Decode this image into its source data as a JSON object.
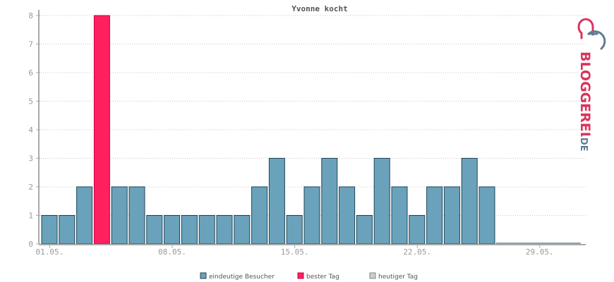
{
  "chart_data": {
    "type": "bar",
    "title": "Yvonne kocht",
    "ylim": [
      0,
      8
    ],
    "yticks": [
      0,
      1,
      2,
      3,
      4,
      5,
      6,
      7,
      8
    ],
    "slots": 31,
    "values": [
      1,
      1,
      2,
      8,
      2,
      2,
      1,
      1,
      1,
      1,
      1,
      1,
      2,
      3,
      1,
      2,
      3,
      2,
      1,
      3,
      2,
      1,
      2,
      2,
      3,
      2
    ],
    "best_day_index": 3,
    "xticks": [
      {
        "index": 0,
        "label": "01.05."
      },
      {
        "index": 7,
        "label": "08.05."
      },
      {
        "index": 14,
        "label": "15.05."
      },
      {
        "index": 21,
        "label": "22.05."
      },
      {
        "index": 28,
        "label": "29.05."
      }
    ],
    "grid": true,
    "legend_position": "bottom-center",
    "colors": {
      "bar": "#6aa2bb",
      "bar_stroke": "#1f4556",
      "best": "#ff2060",
      "best_stroke": "#c80040",
      "today": "#cccccc",
      "today_stroke": "#888888",
      "axis": "#aaaaaa",
      "grid": "#c8c8c8"
    },
    "legend": [
      {
        "label": "eindeutige Besucher",
        "color": "#6aa2bb"
      },
      {
        "label": "bester Tag",
        "color": "#ff2060"
      },
      {
        "label": "heutiger Tag",
        "color": "#cccccc"
      }
    ]
  },
  "logo": {
    "text_main": "BLOGGEREI",
    "text_suffix": ".DE",
    "colors": {
      "main": "#d8355e",
      "suffix": "#5f7c93"
    }
  }
}
